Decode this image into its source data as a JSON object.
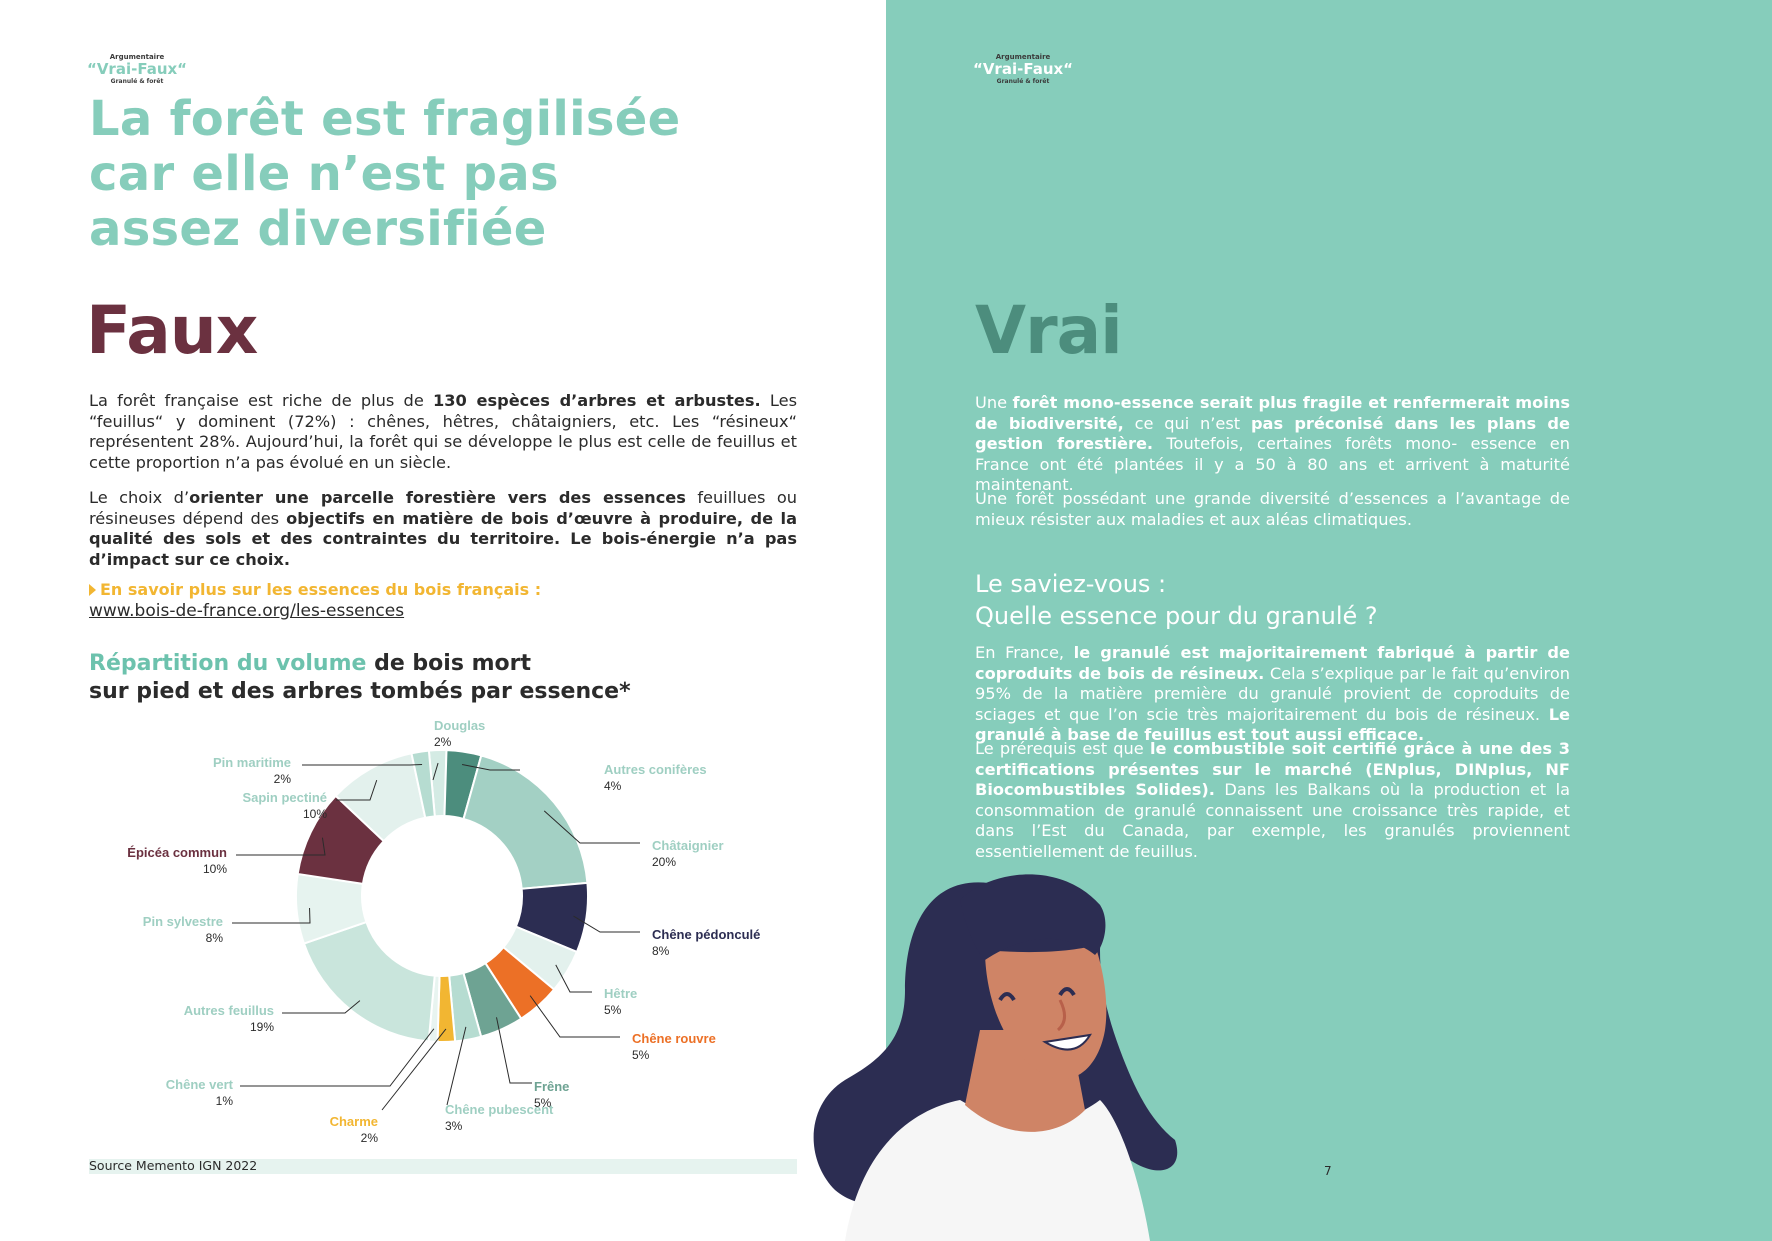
{
  "logo": {
    "line1": "Argumentaire",
    "line2": "“Vrai-Faux“",
    "line3": "Granulé & forêt"
  },
  "left": {
    "headline": [
      "La forêt est fragilisée",
      "car elle n’est pas",
      "assez diversifiée"
    ],
    "verdict": "Faux",
    "p1": {
      "a": "La forêt française est riche de plus de ",
      "b": "130 espèces d’arbres et arbustes.",
      "c": " Les “feuillus“ y dominent (72%) : chênes, hêtres, châtaigniers, etc. Les “résineux“ représentent 28%. Aujourd’hui, la forêt qui se développe le plus est celle de feuillus et cette proportion n’a pas évolué en un siècle."
    },
    "p2": {
      "a": "Le choix d’",
      "b": "orienter une parcelle forestière vers des essences",
      "c": " feuillues ou résineuses dépend des ",
      "d": "objectifs en matière de bois d’œuvre à produire, de la qualité des sols  et  des contraintes du territoire. Le bois-énergie n’a pas d’impact sur ce choix."
    },
    "link_lead": "En savoir plus sur les essences du bois français :",
    "link_url": "www.bois-de-france.org/les-essences",
    "chart_title_hl": "Répartition du volume",
    "chart_title_rest1": " de bois mort",
    "chart_title_line2": "sur pied et des arbres tombés par essence*",
    "source": "Source Memento IGN 2022"
  },
  "right": {
    "verdict": "Vrai",
    "p1": {
      "a": "Une ",
      "b": "forêt mono-essence serait plus fragile et renfermerait moins de biodiversité,",
      "c": " ce qui n’est ",
      "d": "pas préconisé dans les plans de gestion forestière.",
      "e": " Toutefois, certaines forêts mono- essence en France ont été plantées il y a 50 à 80 ans et arrivent à maturité maintenant."
    },
    "p2": "Une forêt possédant une grande diversité d’essences a l’avantage de mieux résister aux maladies et aux aléas climatiques.",
    "saviez_line1": "Le saviez-vous :",
    "saviez_line2": "Quelle essence pour du granulé ?",
    "p3": {
      "a": "En France, ",
      "b": "le granulé est majoritairement fabriqué à partir de coproduits de  bois de résineux.",
      "c": " Cela s’explique par le fait qu’environ 95% de la matière première du granulé provient de coproduits de sciages et que l’on scie très majoritairement du bois de résineux. ",
      "d": "Le granulé à base de feuillus est tout aussi efficace."
    },
    "p4": {
      "a": "Le prérequis est que ",
      "b": "le combustible soit certifié grâce à une des 3 certifications présentes sur le marché (ENplus, DINplus, NF Biocombustibles Solides).",
      "c": " Dans les Balkans où la production et la consommation de granulé connaissent une croissance très rapide, et dans l’Est du Canada, par exemple, les granulés proviennent essentiellement de feuillus."
    },
    "page_number": "7"
  },
  "colors": {
    "teal": "#86cdbb",
    "dark_teal": "#4c8d7d",
    "maroon": "#6b3140",
    "navy": "#2c2d52",
    "orange": "#ec7026",
    "yellow": "#f2b632",
    "skin": "#cf8466"
  },
  "chart_data": {
    "type": "donut",
    "slices": [
      {
        "name": "Douglas",
        "value": 2,
        "label": "2%",
        "color": "#d4ebe4",
        "label_color": "#9fcfc2"
      },
      {
        "name": "Autres conifères",
        "value": 4,
        "label": "4%",
        "color": "#4c8d7d",
        "label_color": "#9fcfc2"
      },
      {
        "name": "Châtaignier",
        "value": 20,
        "label": "20%",
        "color": "#a3d0c4",
        "label_color": "#9fcfc2"
      },
      {
        "name": "Chêne pédonculé",
        "value": 8,
        "label": "8%",
        "color": "#2c2d52",
        "label_color": "#2c2d52"
      },
      {
        "name": "Hêtre",
        "value": 5,
        "label": "5%",
        "color": "#e3f1ed",
        "label_color": "#9fcfc2"
      },
      {
        "name": "Chêne rouvre",
        "value": 5,
        "label": "5%",
        "color": "#ec7026",
        "label_color": "#ec7026"
      },
      {
        "name": "Frêne",
        "value": 5,
        "label": "5%",
        "color": "#6ea393",
        "label_color": "#6ea393"
      },
      {
        "name": "Chêne pubescent",
        "value": 3,
        "label": "3%",
        "color": "#b6dcd1",
        "label_color": "#9fcfc2"
      },
      {
        "name": "Charme",
        "value": 2,
        "label": "2%",
        "color": "#f2b632",
        "label_color": "#f2b632"
      },
      {
        "name": "Chêne vert",
        "value": 1,
        "label": "1%",
        "color": "#e8f4f0",
        "label_color": "#9fcfc2"
      },
      {
        "name": "Autres feuillus",
        "value": 19,
        "label": "19%",
        "color": "#c9e5dc",
        "label_color": "#9fcfc2"
      },
      {
        "name": "Pin sylvestre",
        "value": 8,
        "label": "8%",
        "color": "#e6f3ef",
        "label_color": "#9fcfc2"
      },
      {
        "name": "Épicéa commun",
        "value": 10,
        "label": "10%",
        "color": "#6b3140",
        "label_color": "#6b3140"
      },
      {
        "name": "Sapin pectiné",
        "value": 10,
        "label": "10%",
        "color": "#e3f1ed",
        "label_color": "#9fcfc2"
      },
      {
        "name": "Pin maritime",
        "value": 2,
        "label": "2%",
        "color": "#b6dcd1",
        "label_color": "#9fcfc2"
      }
    ]
  }
}
